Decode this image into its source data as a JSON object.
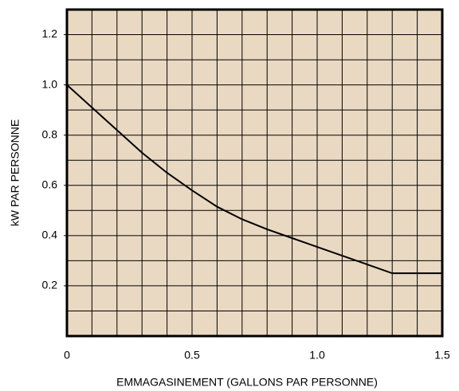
{
  "chart_data": {
    "type": "line",
    "xlabel": "EMMAGASINEMENT (GALLONS PAR PERSONNE)",
    "ylabel": "kW PAR PERSONNE",
    "x": [
      0,
      0.1,
      0.2,
      0.3,
      0.4,
      0.5,
      0.6,
      0.7,
      0.8,
      0.9,
      1.0,
      1.1,
      1.2,
      1.3,
      1.5
    ],
    "series": [
      {
        "color": "#000000",
        "values": [
          1.0,
          0.91,
          0.82,
          0.73,
          0.65,
          0.58,
          0.515,
          0.465,
          0.425,
          0.39,
          0.355,
          0.32,
          0.285,
          0.25,
          0.25
        ]
      }
    ],
    "xlim": [
      0,
      1.5
    ],
    "xticks": [
      0,
      0.5,
      {
        "value": 1.0,
        "label": "1.0"
      },
      1.5
    ],
    "ylim": [
      0,
      1.3
    ],
    "yticks": [
      0.2,
      0.4,
      0.6,
      0.8,
      {
        "value": 1.0,
        "label": "1.0"
      },
      1.2
    ],
    "xgridlines": [
      0.1,
      0.2,
      0.3,
      0.4,
      0.5,
      0.6,
      0.7,
      0.8,
      0.9,
      1.0,
      1.1,
      1.2,
      1.3,
      1.4
    ],
    "ygridlines": [
      0.1,
      0.2,
      0.3,
      0.4,
      0.5,
      0.6,
      0.7,
      0.8,
      0.9,
      1.0,
      1.1,
      1.2
    ],
    "background": "#ead9c2"
  }
}
